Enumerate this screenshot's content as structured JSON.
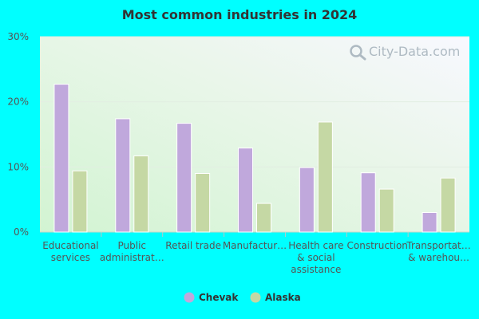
{
  "chart_data": {
    "type": "bar",
    "title": "Most common industries in 2024",
    "xlabel": "",
    "ylabel": "",
    "ylim": [
      0,
      30
    ],
    "yticks": [
      "0%",
      "10%",
      "20%",
      "30%"
    ],
    "ytick_values": [
      0,
      10,
      20,
      30
    ],
    "categories": [
      [
        "Educational",
        "services"
      ],
      [
        "Public",
        "administrat…"
      ],
      [
        "Retail trade"
      ],
      [
        "Manufactur…"
      ],
      [
        "Health care",
        "& social",
        "assistance"
      ],
      [
        "Construction"
      ],
      [
        "Transportat…",
        "& warehou…"
      ]
    ],
    "series": [
      {
        "name": "Chevak",
        "color": "#c0a8dc",
        "values": [
          22.7,
          17.4,
          16.7,
          12.9,
          9.9,
          9.1,
          3.0
        ]
      },
      {
        "name": "Alaska",
        "color": "#c5d8a4",
        "values": [
          9.4,
          11.7,
          9.0,
          4.4,
          16.9,
          6.6,
          8.3
        ]
      }
    ],
    "legend": "bottom",
    "grid": true,
    "watermark": "City-Data.com"
  }
}
